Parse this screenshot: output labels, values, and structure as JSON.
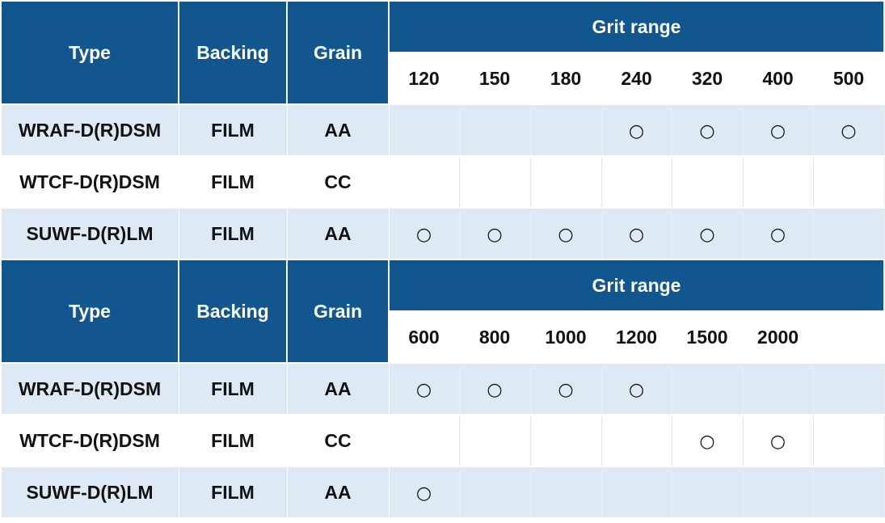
{
  "colors": {
    "header_bg": "#11568e",
    "row_alt_bg": "#ddeaf6",
    "row_bg": "#ffffff"
  },
  "mark_symbol": "○",
  "sections": [
    {
      "headers": {
        "type": "Type",
        "backing": "Backing",
        "grain": "Grain",
        "grit_range": "Grit range"
      },
      "grits": [
        "120",
        "150",
        "180",
        "240",
        "320",
        "400",
        "500"
      ],
      "rows": [
        {
          "type": "WRAF-D(R)DSM",
          "backing": "FILM",
          "grain": "AA",
          "marks": [
            false,
            false,
            false,
            true,
            true,
            true,
            true
          ]
        },
        {
          "type": "WTCF-D(R)DSM",
          "backing": "FILM",
          "grain": "CC",
          "marks": [
            false,
            false,
            false,
            false,
            false,
            false,
            false
          ]
        },
        {
          "type": "SUWF-D(R)LM",
          "backing": "FILM",
          "grain": "AA",
          "marks": [
            true,
            true,
            true,
            true,
            true,
            true,
            false
          ]
        }
      ]
    },
    {
      "headers": {
        "type": "Type",
        "backing": "Backing",
        "grain": "Grain",
        "grit_range": "Grit range"
      },
      "grits": [
        "600",
        "800",
        "1000",
        "1200",
        "1500",
        "2000",
        ""
      ],
      "rows": [
        {
          "type": "WRAF-D(R)DSM",
          "backing": "FILM",
          "grain": "AA",
          "marks": [
            true,
            true,
            true,
            true,
            false,
            false,
            false
          ]
        },
        {
          "type": "WTCF-D(R)DSM",
          "backing": "FILM",
          "grain": "CC",
          "marks": [
            false,
            false,
            false,
            false,
            true,
            true,
            false
          ]
        },
        {
          "type": "SUWF-D(R)LM",
          "backing": "FILM",
          "grain": "AA",
          "marks": [
            true,
            false,
            false,
            false,
            false,
            false,
            false
          ]
        }
      ]
    }
  ]
}
